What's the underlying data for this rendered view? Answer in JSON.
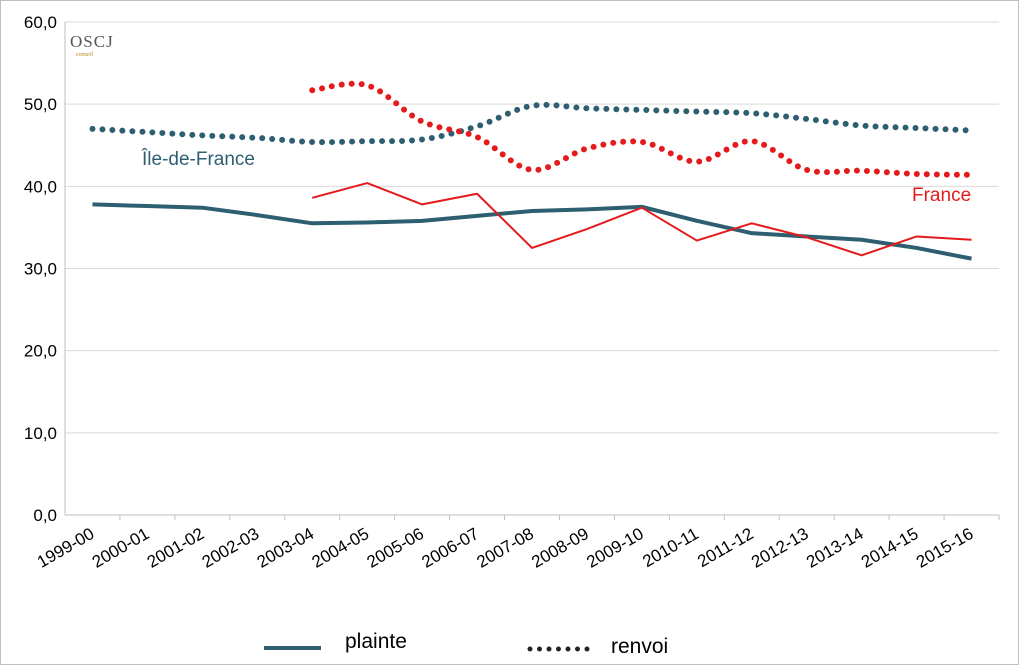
{
  "chart_data": {
    "type": "line",
    "categories": [
      "1999-00",
      "2000-01",
      "2001-02",
      "2002-03",
      "2003-04",
      "2004-05",
      "2005-06",
      "2006-07",
      "2007-08",
      "2008-09",
      "2009-10",
      "2010-11",
      "2011-12",
      "2012-13",
      "2013-14",
      "2014-15",
      "2015-16"
    ],
    "ylim": [
      0,
      60
    ],
    "yticks": [
      "0,0",
      "10,0",
      "20,0",
      "30,0",
      "40,0",
      "50,0",
      "60,0"
    ],
    "grid": true,
    "series": [
      {
        "name": "Île-de-France",
        "type": "plainte",
        "color": "#2e5f71",
        "values": [
          37.8,
          37.6,
          37.4,
          36.5,
          35.5,
          35.6,
          35.8,
          36.4,
          37.0,
          37.2,
          37.5,
          35.8,
          34.3,
          33.9,
          33.5,
          32.5,
          31.2
        ]
      },
      {
        "name": "Île-de-France",
        "type": "renvoi",
        "color": "#2e5f71",
        "values": [
          47.0,
          46.6,
          46.2,
          45.9,
          45.4,
          45.5,
          45.7,
          47.3,
          49.8,
          49.5,
          49.3,
          49.1,
          48.9,
          48.2,
          47.4,
          47.1,
          46.8
        ]
      },
      {
        "name": "France",
        "type": "plainte",
        "color": "#e41a1c",
        "values": [
          null,
          null,
          null,
          null,
          38.6,
          40.4,
          37.8,
          39.1,
          32.5,
          34.8,
          37.4,
          33.4,
          35.5,
          33.8,
          31.6,
          33.9,
          33.5
        ]
      },
      {
        "name": "France",
        "type": "renvoi",
        "color": "#e41a1c",
        "values": [
          null,
          null,
          null,
          null,
          51.7,
          52.3,
          47.9,
          46.0,
          42.0,
          44.6,
          45.4,
          43.0,
          45.5,
          42.0,
          41.9,
          41.5,
          41.4
        ]
      }
    ],
    "series_labels": {
      "idf": "Île-de-France",
      "france": "France"
    },
    "legend": {
      "position": "bottom",
      "solid_label": "plainte",
      "dotted_label": "renvoi"
    }
  },
  "colors": {
    "idf": "#2e5f71",
    "france": "#e41a1c",
    "grid": "#d9d9d9"
  },
  "logo": {
    "main": "OSCJ",
    "sub": "conseil"
  }
}
